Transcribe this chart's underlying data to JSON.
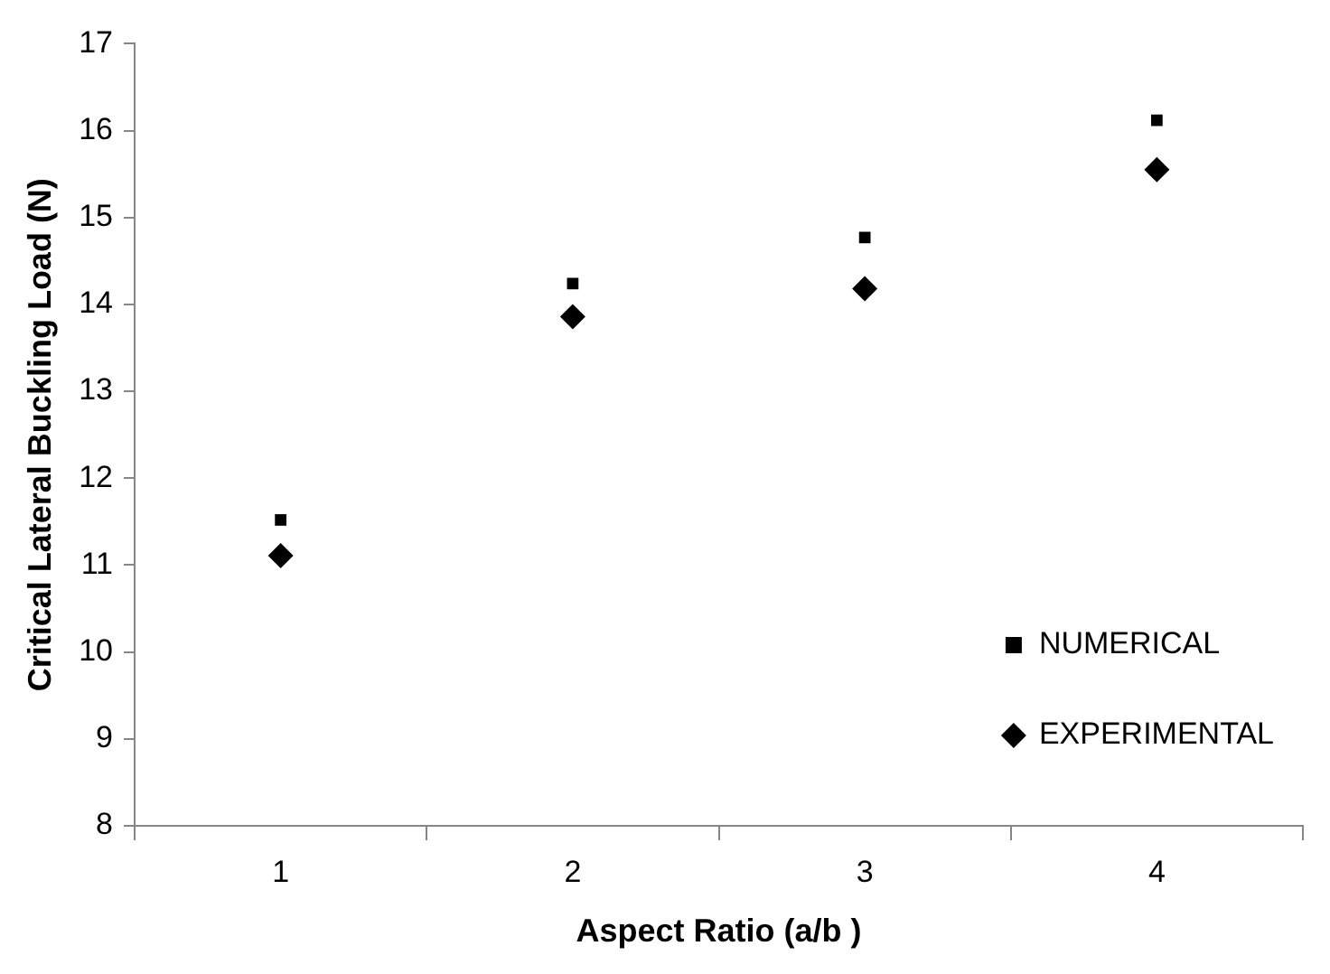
{
  "chart_data": {
    "type": "scatter",
    "xlabel": "Aspect Ratio (a/b )",
    "ylabel": "Critical Lateral Buckling Load (N)",
    "categories": [
      "1",
      "2",
      "3",
      "4"
    ],
    "ylim": [
      8,
      17
    ],
    "yticks": [
      8,
      9,
      10,
      11,
      12,
      13,
      14,
      15,
      16,
      17
    ],
    "grid": false,
    "legend": "bottom right",
    "series": [
      {
        "name": "NUMERICAL",
        "color": "#000000",
        "marker": "square",
        "values": [
          11.52,
          14.24,
          14.77,
          16.12
        ]
      },
      {
        "name": "EXPERIMENTAL",
        "color": "#000000",
        "marker": "diamond",
        "values": [
          11.11,
          13.86,
          14.18,
          15.55
        ]
      }
    ]
  }
}
